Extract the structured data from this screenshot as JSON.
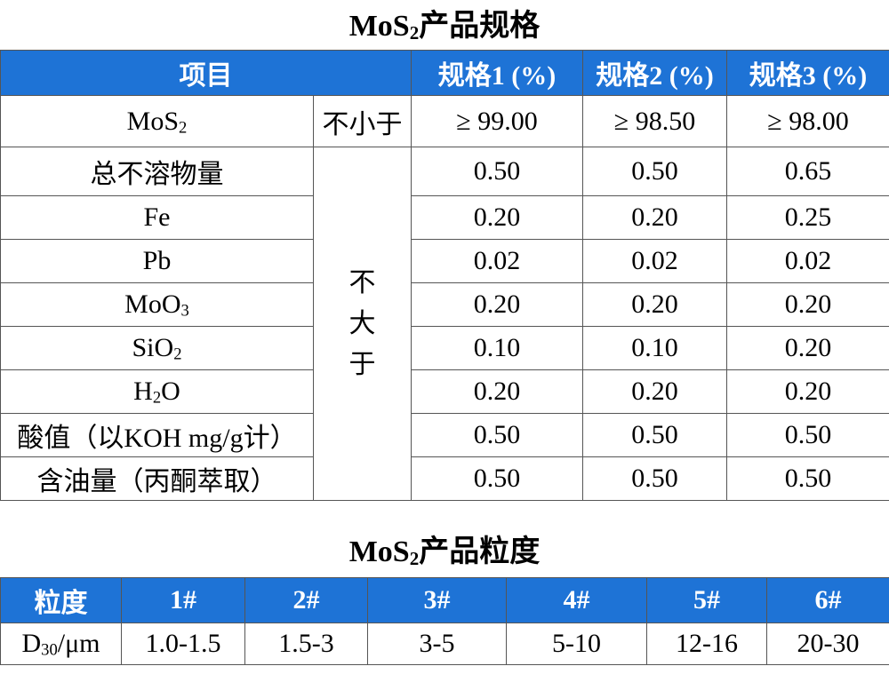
{
  "spec": {
    "title_main": "MoS",
    "title_sub": "2",
    "title_tail": "产品规格",
    "headers": [
      "项目",
      "规格1 (%)",
      "规格2 (%)",
      "规格3 (%)"
    ],
    "min_label": "不小于",
    "max_label_chars": [
      "不",
      "大",
      "于"
    ],
    "rows": [
      {
        "name_main": "MoS",
        "name_sub": "2",
        "name_tail": "",
        "values": [
          "≥ 99.00",
          "≥ 98.50",
          "≥ 98.00"
        ]
      },
      {
        "name_main": "总不溶物量",
        "name_sub": "",
        "name_tail": "",
        "values": [
          "0.50",
          "0.50",
          "0.65"
        ]
      },
      {
        "name_main": "Fe",
        "name_sub": "",
        "name_tail": "",
        "values": [
          "0.20",
          "0.20",
          "0.25"
        ]
      },
      {
        "name_main": "Pb",
        "name_sub": "",
        "name_tail": "",
        "values": [
          "0.02",
          "0.02",
          "0.02"
        ]
      },
      {
        "name_main": "MoO",
        "name_sub": "3",
        "name_tail": "",
        "values": [
          "0.20",
          "0.20",
          "0.20"
        ]
      },
      {
        "name_main": "SiO",
        "name_sub": "2",
        "name_tail": "",
        "values": [
          "0.10",
          "0.10",
          "0.20"
        ]
      },
      {
        "name_main": "H",
        "name_sub": "2",
        "name_tail": "O",
        "values": [
          "0.20",
          "0.20",
          "0.20"
        ]
      },
      {
        "name_main": "酸值（以KOH mg/g计）",
        "name_sub": "",
        "name_tail": "",
        "values": [
          "0.50",
          "0.50",
          "0.50"
        ]
      },
      {
        "name_main": "含油量（丙酮萃取）",
        "name_sub": "",
        "name_tail": "",
        "values": [
          "0.50",
          "0.50",
          "0.50"
        ]
      }
    ]
  },
  "size": {
    "title_main": "MoS",
    "title_sub": "2",
    "title_tail": "产品粒度",
    "header_label": "粒度",
    "grades": [
      "1#",
      "2#",
      "3#",
      "4#",
      "5#",
      "6#"
    ],
    "row_label_main": "D",
    "row_label_sub": "30",
    "row_label_tail": "/μm",
    "values": [
      "1.0-1.5",
      "1.5-3",
      "3-5",
      "5-10",
      "12-16",
      "20-30"
    ]
  },
  "colors": {
    "header_bg": "#1e73d6",
    "header_text": "#ffffff",
    "border": "#555555"
  }
}
